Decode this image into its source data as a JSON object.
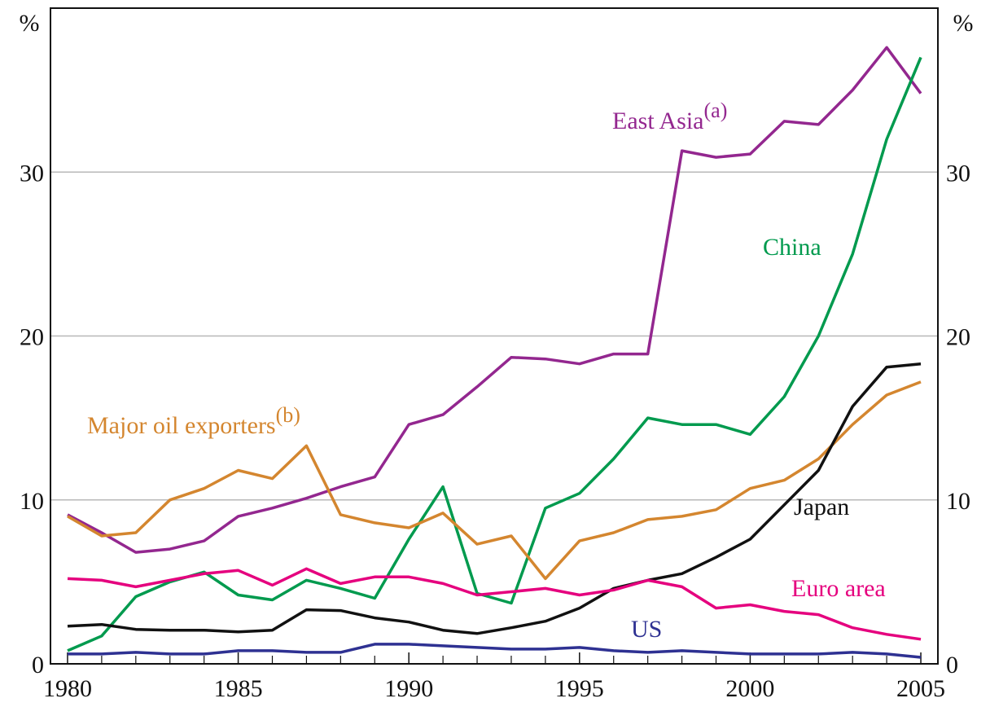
{
  "chart_data": {
    "type": "line",
    "y_label": "%",
    "y2_label": "%",
    "x": [
      1980,
      1981,
      1982,
      1983,
      1984,
      1985,
      1986,
      1987,
      1988,
      1989,
      1990,
      1991,
      1992,
      1993,
      1994,
      1995,
      1996,
      1997,
      1998,
      1999,
      2000,
      2001,
      2002,
      2003,
      2004,
      2005
    ],
    "xlim": [
      1979.5,
      2005.5
    ],
    "xticks": [
      1980,
      1985,
      1990,
      1995,
      2000,
      2005
    ],
    "ylim": [
      0,
      40
    ],
    "yticks": [
      0,
      10,
      20,
      30
    ],
    "y2lim": [
      0,
      40
    ],
    "y2ticks": [
      0,
      10,
      20,
      30
    ],
    "grid": true,
    "series": [
      {
        "name": "East Asia",
        "note": "(a)",
        "color": "#93278f",
        "values": [
          9.1,
          8.0,
          6.8,
          7.0,
          7.5,
          9.0,
          9.5,
          10.1,
          10.8,
          11.4,
          14.6,
          15.2,
          16.9,
          18.7,
          18.6,
          18.3,
          18.9,
          18.9,
          31.3,
          30.9,
          31.1,
          33.1,
          32.9,
          35.0,
          37.6,
          34.8
        ]
      },
      {
        "name": "China",
        "color": "#009a4e",
        "values": [
          0.8,
          1.7,
          4.1,
          5.0,
          5.6,
          4.2,
          3.9,
          5.1,
          4.6,
          4.0,
          7.6,
          10.8,
          4.3,
          3.7,
          9.5,
          10.4,
          12.5,
          15.0,
          14.6,
          14.6,
          14.0,
          16.3,
          20.0,
          25.0,
          32.0,
          37.0
        ]
      },
      {
        "name": "Major oil exporters",
        "note": "(b)",
        "color": "#d4862f",
        "values": [
          9.0,
          7.8,
          8.0,
          10.0,
          10.7,
          11.8,
          11.3,
          13.3,
          9.1,
          8.6,
          8.3,
          9.2,
          7.3,
          7.8,
          5.2,
          7.5,
          8.0,
          8.8,
          9.0,
          9.4,
          10.7,
          11.2,
          12.5,
          14.6,
          16.4,
          17.2
        ]
      },
      {
        "name": "Japan",
        "color": "#111111",
        "values": [
          2.3,
          2.4,
          2.1,
          2.05,
          2.05,
          1.95,
          2.05,
          3.3,
          3.25,
          2.8,
          2.55,
          2.05,
          1.85,
          2.2,
          2.6,
          3.4,
          4.6,
          5.1,
          5.5,
          6.5,
          7.6,
          9.7,
          11.8,
          15.7,
          18.1,
          18.3
        ]
      },
      {
        "name": "Euro area",
        "color": "#e5007e",
        "values": [
          5.2,
          5.1,
          4.7,
          5.1,
          5.5,
          5.7,
          4.8,
          5.8,
          4.9,
          5.3,
          5.3,
          4.9,
          4.2,
          4.4,
          4.6,
          4.2,
          4.5,
          5.1,
          4.7,
          3.4,
          3.6,
          3.2,
          3.0,
          2.2,
          1.8,
          1.5
        ]
      },
      {
        "name": "US",
        "color": "#2e3192",
        "values": [
          0.6,
          0.6,
          0.7,
          0.6,
          0.6,
          0.8,
          0.8,
          0.7,
          0.7,
          1.2,
          1.2,
          1.1,
          1.0,
          0.9,
          0.9,
          1.0,
          0.8,
          0.7,
          0.8,
          0.7,
          0.6,
          0.6,
          0.6,
          0.7,
          0.6,
          0.4
        ]
      }
    ]
  }
}
